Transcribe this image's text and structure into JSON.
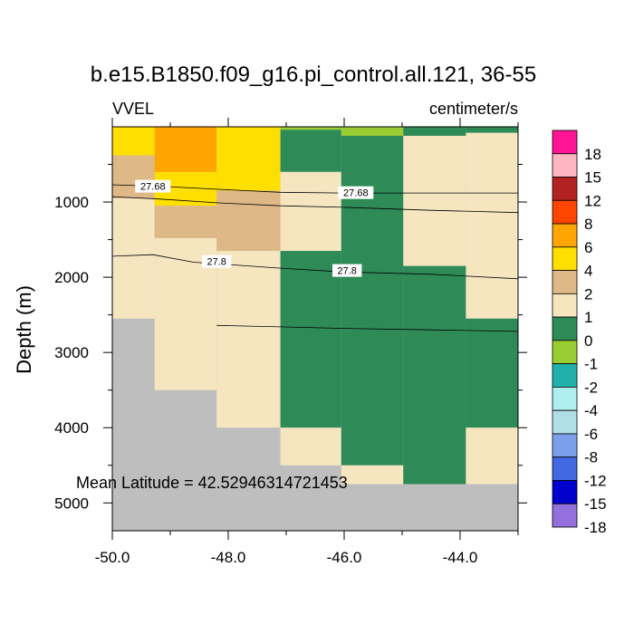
{
  "chart_data": {
    "type": "heatmap",
    "title": "b.e15.B1850.f09_g16.pi_control.all.121, 36-55",
    "left_label": "VVEL",
    "right_label": "centimeter/s",
    "ylabel": "Depth (m)",
    "xlabel": "",
    "xlim": [
      -50.0,
      -43.0
    ],
    "ylim": [
      5370,
      0
    ],
    "y_inverted": true,
    "x_ticks": [
      -50.0,
      -48.0,
      -46.0,
      -44.0
    ],
    "x_tick_labels": [
      "-50.0",
      "-48.0",
      "-46.0",
      "-44.0"
    ],
    "y_ticks": [
      1000,
      2000,
      3000,
      4000,
      5000
    ],
    "y_tick_labels": [
      "1000",
      "2000",
      "3000",
      "4000",
      "5000"
    ],
    "annotation": "Mean Latitude = 42.52946314721453",
    "colorbar": {
      "labels": [
        "18",
        "15",
        "12",
        "8",
        "6",
        "4",
        "2",
        "1",
        "0",
        "-1",
        "-2",
        "-4",
        "-6",
        "-8",
        "-12",
        "-15",
        "-18"
      ],
      "colors": [
        "#ff1493",
        "#ffb6c1",
        "#b22222",
        "#ff4500",
        "#ffa500",
        "#ffdf00",
        "#deb887",
        "#f5e6c0",
        "#2e8b57",
        "#9acd32",
        "#20b2aa",
        "#afeeee",
        "#b0e0e6",
        "#7b9fea",
        "#4169e1",
        "#0000cd",
        "#9370db"
      ]
    },
    "fill_colors": {
      "land": "#bebebe",
      "c_2_4": "#ffa500",
      "c_1_2": "#deb887",
      "c_0_1": "#f5e6c0",
      "c_m1_0": "#2e8b57",
      "c_m2_m1": "#9acd32",
      "c_2_4_yellow": "#ffdf00"
    },
    "columns": [
      {
        "x0": -50.0,
        "x1": -49.27,
        "bottom": 2550,
        "layers": [
          [
            0,
            380,
            "#ffdf00"
          ],
          [
            380,
            950,
            "#deb887"
          ],
          [
            950,
            2550,
            "#f5e6c0"
          ]
        ]
      },
      {
        "x0": -49.27,
        "x1": -48.2,
        "bottom": 3500,
        "layers": [
          [
            0,
            600,
            "#ffa500"
          ],
          [
            600,
            1050,
            "#ffdf00"
          ],
          [
            1050,
            1480,
            "#deb887"
          ],
          [
            1480,
            3500,
            "#f5e6c0"
          ]
        ]
      },
      {
        "x0": -48.2,
        "x1": -47.1,
        "bottom": 4000,
        "layers": [
          [
            0,
            850,
            "#ffdf00"
          ],
          [
            850,
            1650,
            "#deb887"
          ],
          [
            1650,
            4000,
            "#f5e6c0"
          ]
        ]
      },
      {
        "x0": -47.1,
        "x1": -46.05,
        "bottom": 4500,
        "layers": [
          [
            0,
            40,
            "#9acd32"
          ],
          [
            40,
            600,
            "#2e8b57"
          ],
          [
            600,
            1650,
            "#f5e6c0"
          ],
          [
            1650,
            4000,
            "#2e8b57"
          ],
          [
            4000,
            4500,
            "#f5e6c0"
          ]
        ]
      },
      {
        "x0": -46.05,
        "x1": -44.98,
        "bottom": 4750,
        "layers": [
          [
            0,
            120,
            "#9acd32"
          ],
          [
            120,
            4500,
            "#2e8b57"
          ],
          [
            4500,
            4750,
            "#f5e6c0"
          ]
        ]
      },
      {
        "x0": -44.98,
        "x1": -43.9,
        "bottom": 4750,
        "layers": [
          [
            0,
            120,
            "#2e8b57"
          ],
          [
            120,
            1850,
            "#f5e6c0"
          ],
          [
            1850,
            4750,
            "#2e8b57"
          ]
        ]
      },
      {
        "x0": -43.9,
        "x1": -43.0,
        "bottom": 4750,
        "layers": [
          [
            0,
            80,
            "#2e8b57"
          ],
          [
            80,
            2550,
            "#f5e6c0"
          ],
          [
            2550,
            4000,
            "#2e8b57"
          ],
          [
            4000,
            4750,
            "#f5e6c0"
          ]
        ]
      }
    ],
    "contours": [
      {
        "level": "27.68",
        "points": [
          [
            -50.0,
            770
          ],
          [
            -49.2,
            790
          ],
          [
            -48.2,
            830
          ],
          [
            -47.1,
            870
          ],
          [
            -46.0,
            880
          ],
          [
            -44.5,
            880
          ],
          [
            -43.0,
            880
          ]
        ],
        "labels": [
          [
            -49.3,
            790
          ],
          [
            -45.8,
            875
          ]
        ]
      },
      {
        "level": "",
        "points": [
          [
            -50.0,
            930
          ],
          [
            -49.2,
            960
          ],
          [
            -48.2,
            1010
          ],
          [
            -47.1,
            1050
          ],
          [
            -46.0,
            1070
          ],
          [
            -44.5,
            1110
          ],
          [
            -43.0,
            1140
          ]
        ],
        "labels": []
      },
      {
        "level": "27.8",
        "points": [
          [
            -50.0,
            1720
          ],
          [
            -49.3,
            1700
          ],
          [
            -48.6,
            1800
          ],
          [
            -47.1,
            1880
          ],
          [
            -46.0,
            1930
          ],
          [
            -44.5,
            1960
          ],
          [
            -43.0,
            2020
          ]
        ],
        "labels": [
          [
            -48.2,
            1790
          ],
          [
            -45.95,
            1910
          ]
        ]
      },
      {
        "level": "",
        "points": [
          [
            -48.2,
            2640
          ],
          [
            -47.1,
            2660
          ],
          [
            -46.0,
            2680
          ],
          [
            -44.5,
            2700
          ],
          [
            -43.0,
            2720
          ]
        ],
        "labels": []
      }
    ]
  }
}
